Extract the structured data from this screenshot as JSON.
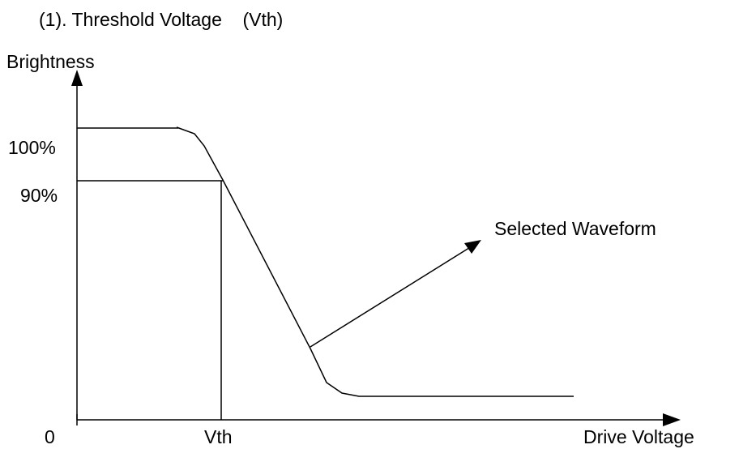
{
  "title": "(1). Threshold Voltage    (Vth)",
  "y_axis": {
    "label": "Brightness",
    "levels": [
      "100%",
      "90%"
    ],
    "origin": "0"
  },
  "x_axis": {
    "label": "Drive Voltage",
    "marker": "Vth"
  },
  "annotation": "Selected Waveform"
}
